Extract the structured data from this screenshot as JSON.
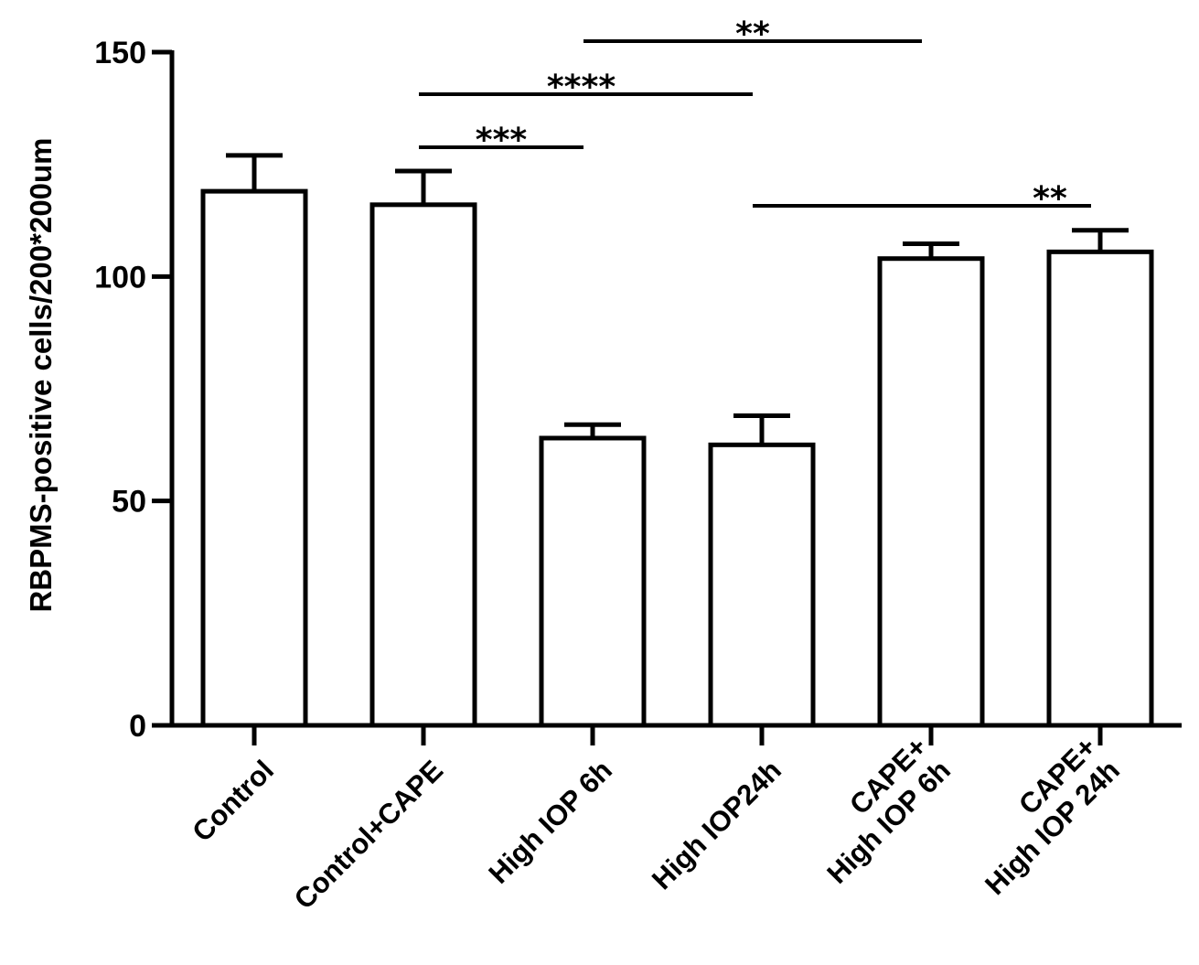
{
  "chart_data": {
    "type": "bar",
    "title": "",
    "xlabel": "",
    "ylabel": "RBPMS-positive cells/200*200um",
    "ylim": [
      0,
      150
    ],
    "yticks": [
      0,
      50,
      100,
      150
    ],
    "grid": false,
    "categories": [
      [
        "Control"
      ],
      [
        "Control+CAPE"
      ],
      [
        "High IOP 6h"
      ],
      [
        "High IOP24h"
      ],
      [
        "CAPE+",
        "High IOP 6h"
      ],
      [
        "CAPE+",
        "High IOP 24h"
      ]
    ],
    "values": [
      119,
      116,
      64,
      62.5,
      104,
      105.5
    ],
    "error": [
      8,
      7.5,
      3,
      6.5,
      3.3,
      4.8
    ],
    "significance": [
      {
        "from": 2,
        "to": 4,
        "level": 0,
        "label": "**"
      },
      {
        "from": 1,
        "to": 3,
        "level": 1,
        "label": "****"
      },
      {
        "from": 1,
        "to": 2,
        "level": 2,
        "label": "***"
      },
      {
        "from": 3,
        "to": 5,
        "level": 3,
        "label": "**"
      }
    ]
  }
}
